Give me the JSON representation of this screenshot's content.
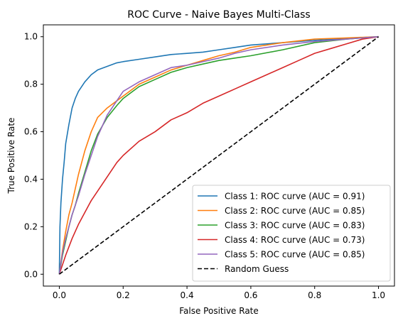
{
  "chart_data": {
    "type": "line",
    "title": "ROC Curve - Naive Bayes Multi-Class",
    "xlabel": "False Positive Rate",
    "ylabel": "True Positive Rate",
    "xlim": [
      -0.05,
      1.05
    ],
    "ylim": [
      -0.05,
      1.05
    ],
    "xticks": [
      0.0,
      0.2,
      0.4,
      0.6,
      0.8,
      1.0
    ],
    "yticks": [
      0.0,
      0.2,
      0.4,
      0.6,
      0.8,
      1.0
    ],
    "xtick_labels": [
      "0.0",
      "0.2",
      "0.4",
      "0.6",
      "0.8",
      "1.0"
    ],
    "ytick_labels": [
      "0.0",
      "0.2",
      "0.4",
      "0.6",
      "0.8",
      "1.0"
    ],
    "grid": false,
    "legend_position": "lower-right",
    "series": [
      {
        "name": "Class 1: ROC curve (AUC = 0.91)",
        "color": "#1f77b4",
        "dash": "solid",
        "x": [
          0,
          0.002,
          0.005,
          0.01,
          0.015,
          0.02,
          0.03,
          0.04,
          0.05,
          0.06,
          0.08,
          0.1,
          0.12,
          0.15,
          0.18,
          0.2,
          0.25,
          0.3,
          0.35,
          0.4,
          0.45,
          0.5,
          0.55,
          0.6,
          0.7,
          0.8,
          0.9,
          1.0
        ],
        "y": [
          0,
          0.2,
          0.3,
          0.4,
          0.47,
          0.55,
          0.63,
          0.7,
          0.74,
          0.77,
          0.81,
          0.84,
          0.86,
          0.875,
          0.89,
          0.895,
          0.905,
          0.915,
          0.925,
          0.93,
          0.935,
          0.945,
          0.955,
          0.965,
          0.975,
          0.985,
          0.993,
          1.0
        ]
      },
      {
        "name": "Class 2: ROC curve (AUC = 0.85)",
        "color": "#ff7f0e",
        "dash": "solid",
        "x": [
          0,
          0.01,
          0.02,
          0.03,
          0.04,
          0.05,
          0.06,
          0.08,
          0.1,
          0.12,
          0.15,
          0.18,
          0.2,
          0.25,
          0.3,
          0.35,
          0.4,
          0.45,
          0.5,
          0.55,
          0.6,
          0.7,
          0.8,
          0.9,
          1.0
        ],
        "y": [
          0,
          0.1,
          0.18,
          0.25,
          0.3,
          0.36,
          0.42,
          0.52,
          0.6,
          0.66,
          0.7,
          0.73,
          0.75,
          0.8,
          0.83,
          0.86,
          0.88,
          0.9,
          0.92,
          0.935,
          0.955,
          0.975,
          0.99,
          0.995,
          1.0
        ]
      },
      {
        "name": "Class 3: ROC curve (AUC = 0.83)",
        "color": "#2ca02c",
        "dash": "solid",
        "x": [
          0,
          0.01,
          0.02,
          0.03,
          0.04,
          0.05,
          0.06,
          0.08,
          0.1,
          0.12,
          0.15,
          0.18,
          0.2,
          0.25,
          0.3,
          0.35,
          0.4,
          0.45,
          0.5,
          0.55,
          0.6,
          0.7,
          0.8,
          0.9,
          1.0
        ],
        "y": [
          0,
          0.08,
          0.14,
          0.2,
          0.25,
          0.29,
          0.34,
          0.43,
          0.52,
          0.59,
          0.66,
          0.71,
          0.74,
          0.79,
          0.82,
          0.85,
          0.87,
          0.885,
          0.9,
          0.91,
          0.92,
          0.945,
          0.975,
          0.99,
          1.0
        ]
      },
      {
        "name": "Class 4: ROC curve (AUC = 0.73)",
        "color": "#d62728",
        "dash": "solid",
        "x": [
          0,
          0.01,
          0.02,
          0.04,
          0.06,
          0.08,
          0.1,
          0.12,
          0.14,
          0.16,
          0.18,
          0.2,
          0.25,
          0.3,
          0.35,
          0.4,
          0.45,
          0.5,
          0.55,
          0.6,
          0.65,
          0.7,
          0.75,
          0.8,
          0.85,
          0.9,
          0.95,
          1.0
        ],
        "y": [
          0,
          0.04,
          0.08,
          0.15,
          0.21,
          0.26,
          0.31,
          0.35,
          0.39,
          0.43,
          0.47,
          0.5,
          0.56,
          0.6,
          0.65,
          0.68,
          0.72,
          0.75,
          0.78,
          0.81,
          0.84,
          0.87,
          0.9,
          0.93,
          0.95,
          0.97,
          0.99,
          1.0
        ]
      },
      {
        "name": "Class 5: ROC curve (AUC = 0.85)",
        "color": "#9467bd",
        "dash": "solid",
        "x": [
          0,
          0.01,
          0.02,
          0.03,
          0.04,
          0.05,
          0.06,
          0.08,
          0.1,
          0.12,
          0.15,
          0.18,
          0.2,
          0.25,
          0.3,
          0.35,
          0.4,
          0.45,
          0.5,
          0.55,
          0.6,
          0.7,
          0.8,
          0.9,
          1.0
        ],
        "y": [
          0,
          0.09,
          0.15,
          0.2,
          0.25,
          0.29,
          0.33,
          0.42,
          0.5,
          0.58,
          0.67,
          0.73,
          0.77,
          0.81,
          0.84,
          0.87,
          0.88,
          0.895,
          0.91,
          0.93,
          0.945,
          0.965,
          0.98,
          0.99,
          1.0
        ]
      },
      {
        "name": "Random Guess",
        "color": "#000000",
        "dash": "dashed",
        "x": [
          0,
          1
        ],
        "y": [
          0,
          1
        ]
      }
    ]
  }
}
